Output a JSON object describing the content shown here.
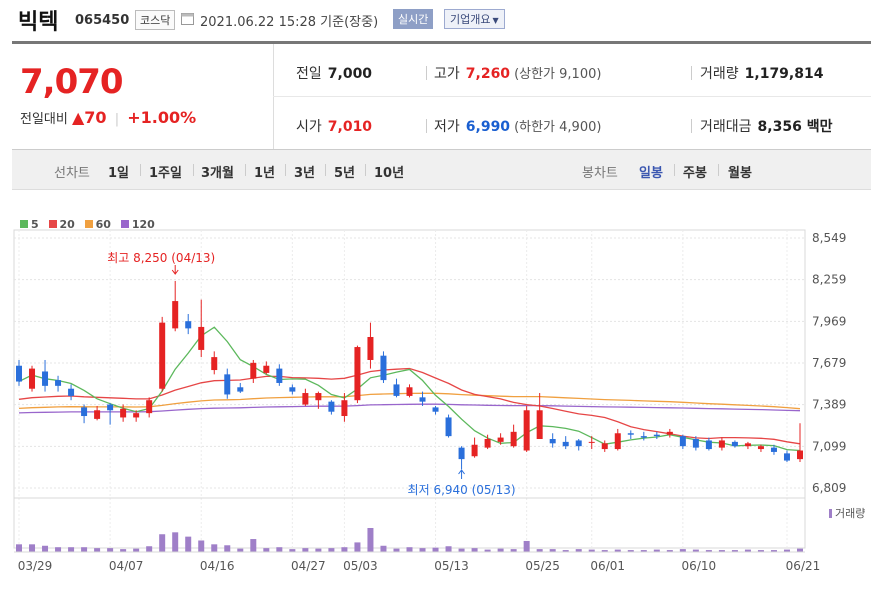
{
  "header": {
    "name": "빅텍",
    "code": "065450",
    "market": "코스닥",
    "datetime": "2021.06.22 15:28 기준(장중)",
    "realtime": "실시간",
    "company_info": "기업개요"
  },
  "quote": {
    "price": "7,070",
    "change_label": "전일대비",
    "change": "▲70",
    "change_pct": "+1.00%",
    "prev_close_label": "전일",
    "prev_close": "7,000",
    "open_label": "시가",
    "open": "7,010",
    "high_label": "고가",
    "high": "7,260",
    "upper_limit": "(상한가 9,100)",
    "low_label": "저가",
    "low": "6,990",
    "lower_limit": "(하한가 4,900)",
    "volume_label": "거래량",
    "volume": "1,179,814",
    "trade_value_label": "거래대금",
    "trade_value": "8,356 백만"
  },
  "tabs": {
    "line_label": "선차트",
    "line": [
      "1일",
      "1주일",
      "3개월",
      "1년",
      "3년",
      "5년",
      "10년"
    ],
    "candle_label": "봉차트",
    "candle": [
      "일봉",
      "주봉",
      "월봉"
    ],
    "active_candle": "일봉"
  },
  "legend": [
    {
      "name": "5",
      "color": "#5cb85c"
    },
    {
      "name": "20",
      "color": "#e64646"
    },
    {
      "name": "60",
      "color": "#f0a040"
    },
    {
      "name": "120",
      "color": "#9966cc"
    }
  ],
  "chart_data": {
    "type": "candlestick",
    "y_ticks": [
      8549,
      8259,
      7969,
      7679,
      7389,
      7099,
      6809
    ],
    "ylim": [
      6809,
      8549
    ],
    "x_ticks": [
      "03/29",
      "04/07",
      "04/16",
      "04/27",
      "05/03",
      "05/13",
      "05/25",
      "06/01",
      "06/10",
      "06/21"
    ],
    "max_annotation": "최고 8,250 (04/13)",
    "min_annotation": "최저 6,940 (05/13)",
    "volume_label": "거래량",
    "candles": [
      [
        7660,
        7550,
        7700,
        7520
      ],
      [
        7500,
        7640,
        7660,
        7480
      ],
      [
        7620,
        7520,
        7700,
        7480
      ],
      [
        7560,
        7520,
        7590,
        7480
      ],
      [
        7500,
        7450,
        7530,
        7420
      ],
      [
        7370,
        7310,
        7390,
        7260
      ],
      [
        7290,
        7350,
        7380,
        7280
      ],
      [
        7390,
        7350,
        7400,
        7250
      ],
      [
        7300,
        7360,
        7390,
        7270
      ],
      [
        7300,
        7330,
        7350,
        7270
      ],
      [
        7330,
        7420,
        7440,
        7300
      ],
      [
        7500,
        7960,
        8000,
        7480
      ],
      [
        7920,
        8110,
        8250,
        7900
      ],
      [
        7970,
        7920,
        8020,
        7880
      ],
      [
        7770,
        7930,
        8120,
        7720
      ],
      [
        7630,
        7720,
        7760,
        7600
      ],
      [
        7600,
        7460,
        7640,
        7430
      ],
      [
        7510,
        7480,
        7540,
        7470
      ],
      [
        7570,
        7680,
        7700,
        7540
      ],
      [
        7610,
        7660,
        7690,
        7600
      ],
      [
        7640,
        7540,
        7670,
        7520
      ],
      [
        7510,
        7480,
        7530,
        7460
      ],
      [
        7390,
        7470,
        7500,
        7380
      ],
      [
        7420,
        7470,
        7480,
        7360
      ],
      [
        7410,
        7340,
        7420,
        7320
      ],
      [
        7310,
        7420,
        7470,
        7270
      ],
      [
        7420,
        7790,
        7800,
        7400
      ],
      [
        7700,
        7860,
        7960,
        7640
      ],
      [
        7730,
        7560,
        7760,
        7540
      ],
      [
        7530,
        7450,
        7570,
        7440
      ],
      [
        7450,
        7510,
        7530,
        7440
      ],
      [
        7440,
        7410,
        7480,
        7380
      ],
      [
        7370,
        7340,
        7380,
        7320
      ],
      [
        7300,
        7170,
        7320,
        7160
      ],
      [
        7090,
        7010,
        7100,
        6940
      ],
      [
        7030,
        7110,
        7160,
        7020
      ],
      [
        7090,
        7150,
        7180,
        7080
      ],
      [
        7130,
        7160,
        7190,
        7110
      ],
      [
        7100,
        7200,
        7250,
        7090
      ],
      [
        7070,
        7350,
        7380,
        7060
      ],
      [
        7150,
        7350,
        7470,
        7150
      ],
      [
        7150,
        7120,
        7190,
        7090
      ],
      [
        7130,
        7100,
        7170,
        7080
      ],
      [
        7140,
        7100,
        7150,
        7070
      ],
      [
        7130,
        7130,
        7170,
        7080
      ],
      [
        7080,
        7120,
        7140,
        7060
      ],
      [
        7080,
        7190,
        7220,
        7070
      ],
      [
        7190,
        7180,
        7210,
        7150
      ],
      [
        7170,
        7160,
        7200,
        7140
      ],
      [
        7180,
        7170,
        7200,
        7150
      ],
      [
        7180,
        7200,
        7220,
        7160
      ],
      [
        7170,
        7100,
        7180,
        7080
      ],
      [
        7150,
        7090,
        7170,
        7070
      ],
      [
        7140,
        7080,
        7160,
        7070
      ],
      [
        7090,
        7140,
        7160,
        7070
      ],
      [
        7130,
        7100,
        7140,
        7090
      ],
      [
        7100,
        7120,
        7130,
        7080
      ],
      [
        7080,
        7100,
        7110,
        7060
      ],
      [
        7090,
        7060,
        7110,
        7040
      ],
      [
        7050,
        7000,
        7070,
        6990
      ],
      [
        7010,
        7070,
        7260,
        6990
      ]
    ],
    "volumes": [
      0.16,
      0.16,
      0.13,
      0.1,
      0.1,
      0.1,
      0.08,
      0.08,
      0.06,
      0.07,
      0.12,
      0.37,
      0.41,
      0.32,
      0.24,
      0.16,
      0.14,
      0.07,
      0.27,
      0.08,
      0.1,
      0.06,
      0.08,
      0.07,
      0.08,
      0.1,
      0.2,
      0.5,
      0.13,
      0.07,
      0.1,
      0.08,
      0.09,
      0.12,
      0.07,
      0.08,
      0.05,
      0.07,
      0.06,
      0.23,
      0.06,
      0.06,
      0.04,
      0.06,
      0.05,
      0.04,
      0.05,
      0.04,
      0.04,
      0.05,
      0.04,
      0.06,
      0.05,
      0.04,
      0.04,
      0.04,
      0.05,
      0.04,
      0.04,
      0.05,
      0.07
    ]
  }
}
